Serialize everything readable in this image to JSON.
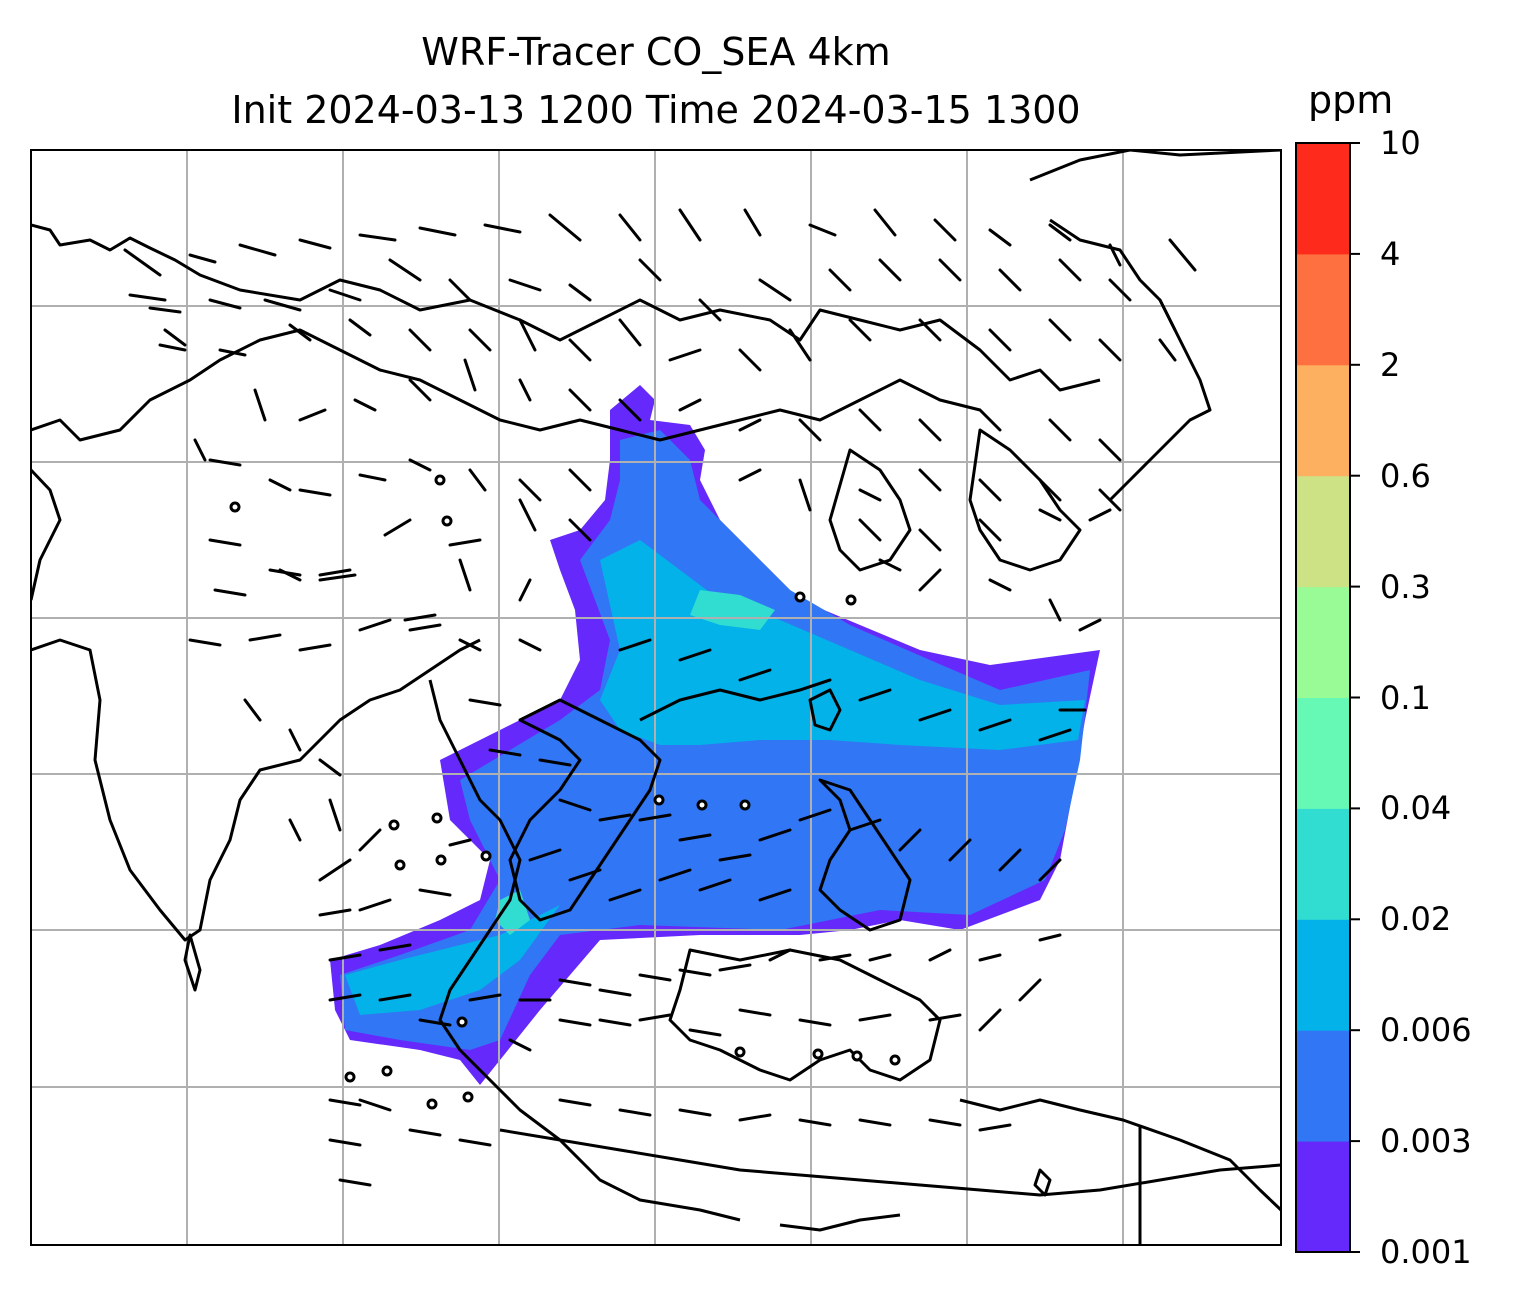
{
  "title": {
    "line1": "WRF-Tracer CO_SEA 4km",
    "line2": "Init 2024-03-13 1200 Time 2024-03-15 1300"
  },
  "colorbar": {
    "units": "ppm",
    "levels": [
      "0.001",
      "0.003",
      "0.006",
      "0.02",
      "0.04",
      "0.1",
      "0.3",
      "0.6",
      "2",
      "4",
      "10"
    ],
    "colors": [
      "#6629fb",
      "#3176f4",
      "#03b2e8",
      "#31dcd1",
      "#65f9b5",
      "#99fb95",
      "#cde185",
      "#fdb05f",
      "#fe7040",
      "#fe2a1b"
    ]
  },
  "map": {
    "type": "tracer-concentration-map",
    "background": "#ffffff",
    "gridlines": true,
    "coastlines": true,
    "wind_barbs": true
  }
}
